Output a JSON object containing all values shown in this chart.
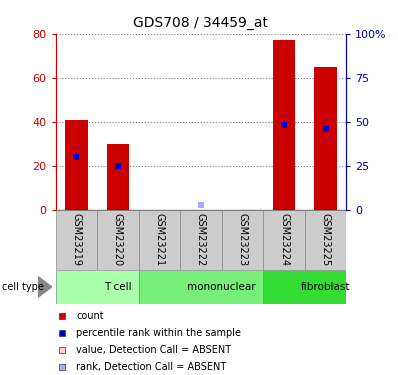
{
  "title": "GDS708 / 34459_at",
  "samples": [
    "GSM23219",
    "GSM23220",
    "GSM23221",
    "GSM23222",
    "GSM23223",
    "GSM23224",
    "GSM23225"
  ],
  "red_bars": [
    41,
    30,
    0,
    0,
    0,
    77,
    65
  ],
  "blue_markers_pct": [
    30,
    25,
    null,
    null,
    null,
    48,
    46
  ],
  "absent_rank_pct": [
    null,
    null,
    null,
    3,
    null,
    null,
    null
  ],
  "cell_types": [
    {
      "label": "T cell",
      "start": 0,
      "end": 2,
      "color": "#aaffaa"
    },
    {
      "label": "mononuclear",
      "start": 2,
      "end": 5,
      "color": "#77ee77"
    },
    {
      "label": "fibroblast",
      "start": 5,
      "end": 7,
      "color": "#33dd33"
    }
  ],
  "left_ylim": [
    0,
    80
  ],
  "right_ylim": [
    0,
    100
  ],
  "left_yticks": [
    0,
    20,
    40,
    60,
    80
  ],
  "right_yticks": [
    0,
    25,
    50,
    75,
    100
  ],
  "right_yticklabels": [
    "0",
    "25",
    "50",
    "75",
    "100%"
  ],
  "left_color": "#cc0000",
  "right_color": "#0000bb",
  "bar_color": "#cc0000",
  "marker_color": "#0000cc",
  "absent_bar_color": "#ffcccc",
  "absent_marker_color": "#aaaaff",
  "grid_color": "#000000",
  "sample_box_color": "#cccccc",
  "background_color": "#ffffff"
}
